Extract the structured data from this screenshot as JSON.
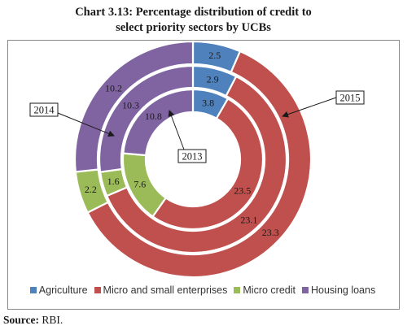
{
  "chart_data": {
    "type": "pie",
    "title": "Chart 3.13: Percentage distribution of credit to select priority sectors by UCBs",
    "title_lines": [
      "Chart 3.13: Percentage distribution of credit to",
      "select priority sectors by UCBs"
    ],
    "categories": [
      "Agriculture",
      "Micro and small enterprises",
      "Micro credit",
      "Housing loans"
    ],
    "colors": [
      "#4f81bd",
      "#c0504d",
      "#9bbb59",
      "#8064a2"
    ],
    "series": [
      {
        "name": "2013",
        "ring": "inner",
        "values": [
          3.8,
          23.5,
          7.6,
          10.8
        ]
      },
      {
        "name": "2014",
        "ring": "middle",
        "values": [
          2.9,
          23.1,
          1.6,
          10.3
        ]
      },
      {
        "name": "2015",
        "ring": "outer",
        "values": [
          2.5,
          23.3,
          2.2,
          10.2
        ]
      }
    ],
    "callouts": [
      "2015",
      "2014",
      "2013"
    ],
    "legend_position": "bottom"
  },
  "source": {
    "label": "Source:",
    "text": "RBI."
  }
}
